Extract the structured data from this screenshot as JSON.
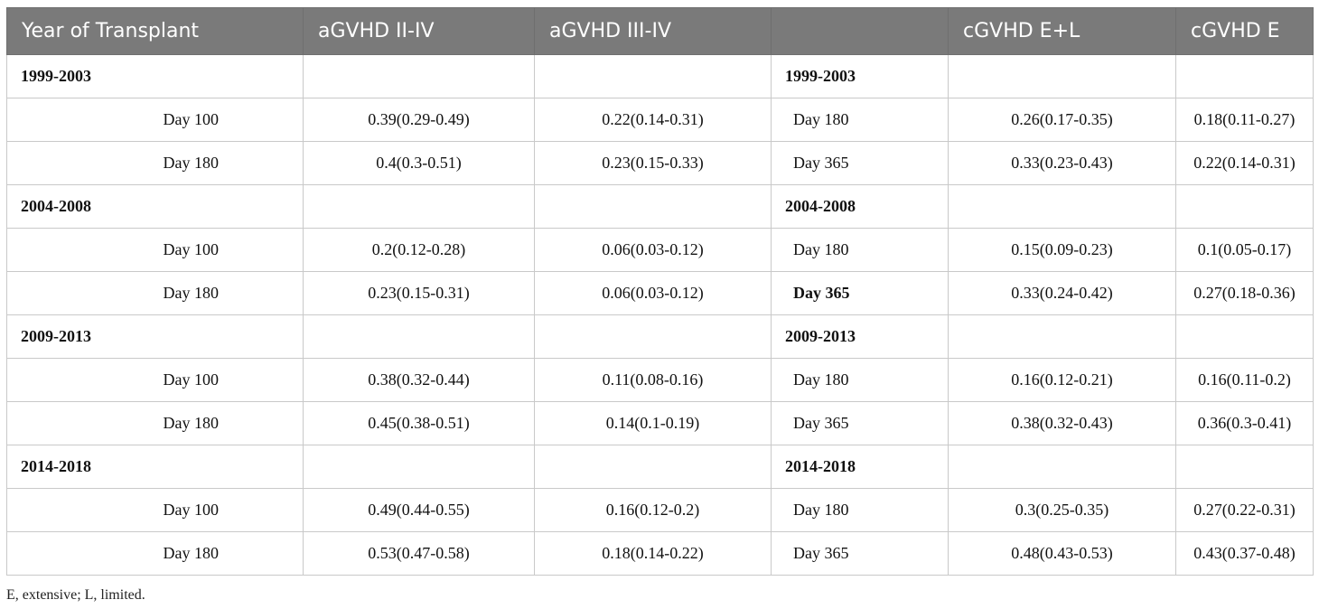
{
  "header": [
    "Year of Transplant",
    "aGVHD II-IV",
    "aGVHD III-IV",
    "",
    "cGVHD E+L",
    "cGVHD E"
  ],
  "groups": [
    {
      "period": "1999-2003",
      "rows": [
        {
          "aday": "Day 100",
          "a24": "0.39(0.29-0.49)",
          "a34": "0.22(0.14-0.31)",
          "cday": "Day 180",
          "cel": "0.26(0.17-0.35)",
          "ce": "0.18(0.11-0.27)"
        },
        {
          "aday": "Day 180",
          "a24": "0.4(0.3-0.51)",
          "a34": "0.23(0.15-0.33)",
          "cday": "Day 365",
          "cel": "0.33(0.23-0.43)",
          "ce": "0.22(0.14-0.31)"
        }
      ]
    },
    {
      "period": "2004-2008",
      "rows": [
        {
          "aday": "Day 100",
          "a24": "0.2(0.12-0.28)",
          "a34": "0.06(0.03-0.12)",
          "cday": "Day 180",
          "cel": "0.15(0.09-0.23)",
          "ce": "0.1(0.05-0.17)"
        },
        {
          "aday": "Day 180",
          "a24": "0.23(0.15-0.31)",
          "a34": "0.06(0.03-0.12)",
          "cday": "Day 365",
          "cel": "0.33(0.24-0.42)",
          "ce": "0.27(0.18-0.36)"
        }
      ]
    },
    {
      "period": "2009-2013",
      "rows": [
        {
          "aday": "Day 100",
          "a24": "0.38(0.32-0.44)",
          "a34": "0.11(0.08-0.16)",
          "cday": "Day 180",
          "cel": "0.16(0.12-0.21)",
          "ce": "0.16(0.11-0.2)"
        },
        {
          "aday": "Day 180",
          "a24": "0.45(0.38-0.51)",
          "a34": "0.14(0.1-0.19)",
          "cday": "Day 365",
          "cel": "0.38(0.32-0.43)",
          "ce": "0.36(0.3-0.41)"
        }
      ]
    },
    {
      "period": "2014-2018",
      "rows": [
        {
          "aday": "Day 100",
          "a24": "0.49(0.44-0.55)",
          "a34": "0.16(0.12-0.2)",
          "cday": "Day 180",
          "cel": "0.3(0.25-0.35)",
          "ce": "0.27(0.22-0.31)"
        },
        {
          "aday": "Day 180",
          "a24": "0.53(0.47-0.58)",
          "a34": "0.18(0.14-0.22)",
          "cday": "Day 365",
          "cel": "0.48(0.43-0.53)",
          "ce": "0.43(0.37-0.48)"
        }
      ]
    }
  ],
  "footnote": "E, extensive; L, limited."
}
